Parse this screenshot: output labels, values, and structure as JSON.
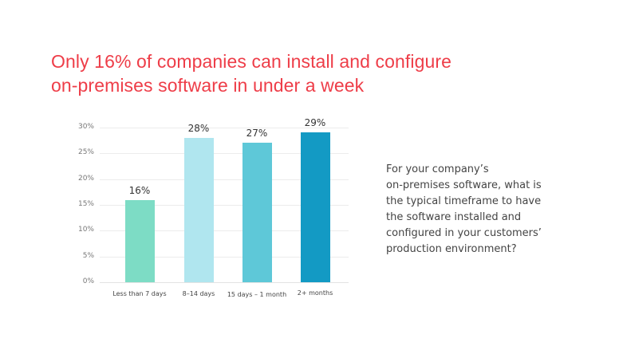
{
  "title": {
    "line1": "Only 16% of companies can install and configure",
    "line2": "on-premises software in under a week",
    "color": "#ee3d48"
  },
  "question": {
    "lines": [
      "For your company’s",
      "on-premises software, what is",
      "the typical timeframe to have",
      "the software installed and",
      "configured in your customers’",
      "production environment?"
    ]
  },
  "chart_data": {
    "type": "bar",
    "title": "Only 16% of companies can install and configure on-premises software in under a week",
    "categories": [
      "Less than 7 days",
      "8–14 days",
      "15 days – 1 month",
      "2+ months"
    ],
    "values": [
      16,
      28,
      27,
      29
    ],
    "value_labels": [
      "16%",
      "28%",
      "27%",
      "29%"
    ],
    "colors": [
      "#7ddcc5",
      "#b0e6ef",
      "#5ec8d8",
      "#139ac4"
    ],
    "xlabel": "",
    "ylabel": "",
    "ylim": [
      0,
      30
    ],
    "yticks": [
      "0%",
      "5%",
      "10%",
      "15%",
      "20%",
      "25%",
      "30%"
    ],
    "grid": true,
    "legend": null
  }
}
